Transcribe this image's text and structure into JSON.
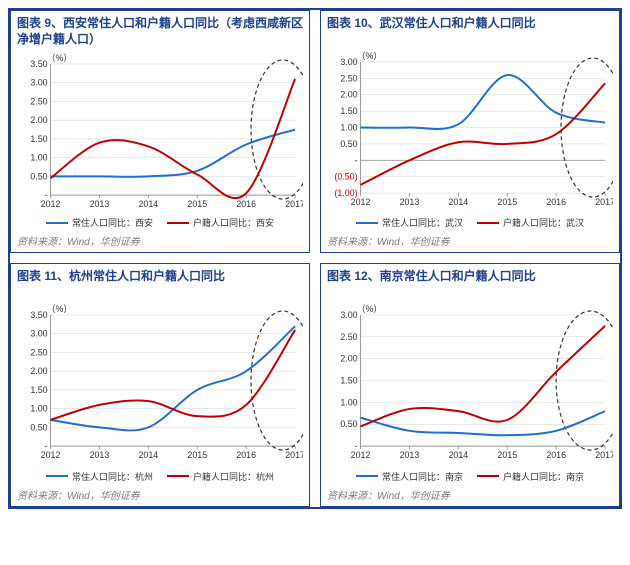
{
  "source_label": "资料来源：Wind，华创证券",
  "series_colors": {
    "blue": "#1f6fd0",
    "red": "#c00000"
  },
  "axis_color": "#999999",
  "grid_color": "#d0d0d0",
  "title_color": "#1f3f8f",
  "panel_border": "#1f3f8f",
  "pct_label": "（%）",
  "x_categories": [
    "2012",
    "2013",
    "2014",
    "2015",
    "2016",
    "2017"
  ],
  "charts": [
    {
      "id": "xian",
      "title": "图表 9、西安常住人口和户籍人口同比（考虑西咸新区净增户籍人口）",
      "ylim": [
        0.0,
        3.5
      ],
      "ytick_step": 0.5,
      "highlight_x": [
        4.3,
        5.2
      ],
      "series": [
        {
          "name": "常住人口同比：西安",
          "color": "blue",
          "values": [
            0.5,
            0.5,
            0.5,
            0.65,
            1.35,
            1.75
          ]
        },
        {
          "name": "户籍人口同比：西安",
          "color": "red",
          "values": [
            0.45,
            1.4,
            1.3,
            0.55,
            0.05,
            3.1
          ]
        }
      ]
    },
    {
      "id": "wuhan",
      "title": "图表 10、武汉常住人口和户籍人口同比",
      "ylim": [
        -1.0,
        3.0
      ],
      "ytick_step": 0.5,
      "highlight_x": [
        4.3,
        5.2
      ],
      "series": [
        {
          "name": "常住人口同比：武汉",
          "color": "blue",
          "values": [
            1.0,
            1.0,
            1.1,
            2.6,
            1.45,
            1.15
          ]
        },
        {
          "name": "户籍人口同比：武汉",
          "color": "red",
          "values": [
            -0.75,
            0.0,
            0.55,
            0.5,
            0.8,
            2.35
          ]
        }
      ]
    },
    {
      "id": "hangzhou",
      "title": "图表 11、杭州常住人口和户籍人口同比",
      "ylim": [
        0.0,
        3.5
      ],
      "ytick_step": 0.5,
      "highlight_x": [
        4.3,
        5.2
      ],
      "series": [
        {
          "name": "常住人口同比：杭州",
          "color": "blue",
          "values": [
            0.7,
            0.5,
            0.5,
            1.5,
            2.0,
            3.2
          ]
        },
        {
          "name": "户籍人口同比：杭州",
          "color": "red",
          "values": [
            0.7,
            1.1,
            1.2,
            0.8,
            1.1,
            3.1
          ]
        }
      ]
    },
    {
      "id": "nanjing",
      "title": "图表 12、南京常住人口和户籍人口同比",
      "ylim": [
        0.0,
        3.0
      ],
      "ytick_step": 0.5,
      "highlight_x": [
        4.2,
        5.2
      ],
      "series": [
        {
          "name": "常住人口同比：南京",
          "color": "blue",
          "values": [
            0.65,
            0.35,
            0.3,
            0.25,
            0.35,
            0.8
          ]
        },
        {
          "name": "户籍人口同比：南京",
          "color": "red",
          "values": [
            0.45,
            0.85,
            0.8,
            0.6,
            1.7,
            2.75
          ]
        }
      ]
    }
  ]
}
